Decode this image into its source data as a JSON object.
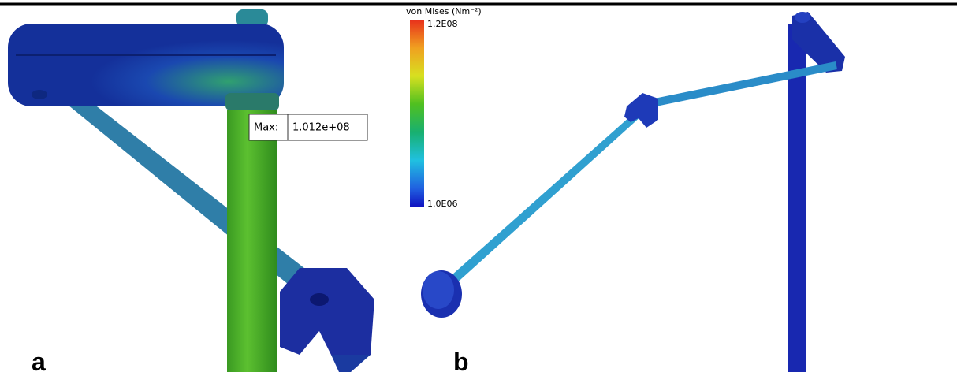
{
  "colorbar": {
    "title": "von Mises (Nm⁻²)",
    "max_label": "1.2E08",
    "min_label": "1.0E06"
  },
  "panels": [
    {
      "label": "a",
      "callout": {
        "label": "Max:",
        "value": "1.012e+08"
      }
    },
    {
      "label": "b"
    }
  ]
}
